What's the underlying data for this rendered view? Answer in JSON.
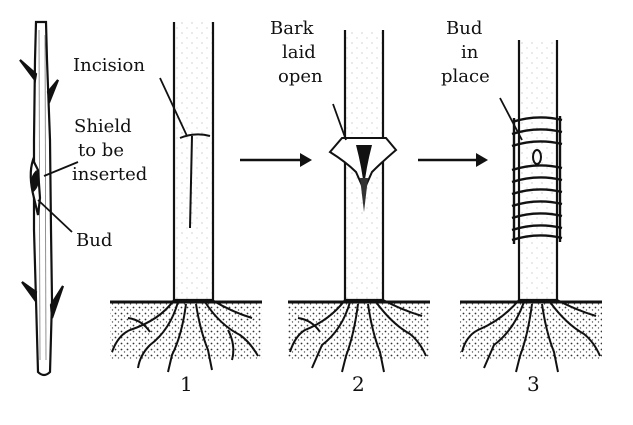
{
  "labels": {
    "incision": "Incision",
    "shield_line1": "Shield",
    "shield_line2": "to be",
    "shield_line3": "inserted",
    "bud": "Bud",
    "bark_line1": "Bark",
    "bark_line2": "laid",
    "bark_line3": "open",
    "bud_in_place_line1": "Bud",
    "bud_in_place_line2": "in",
    "bud_in_place_line3": "place"
  },
  "steps": [
    "1",
    "2",
    "3"
  ],
  "icons": [
    "budwood-stick",
    "tree-trunk",
    "arrow-right",
    "bark-flaps",
    "binding-wrap",
    "roots"
  ],
  "colors": {
    "ink": "#111111",
    "paper": "#ffffff",
    "soil": "#444444"
  }
}
